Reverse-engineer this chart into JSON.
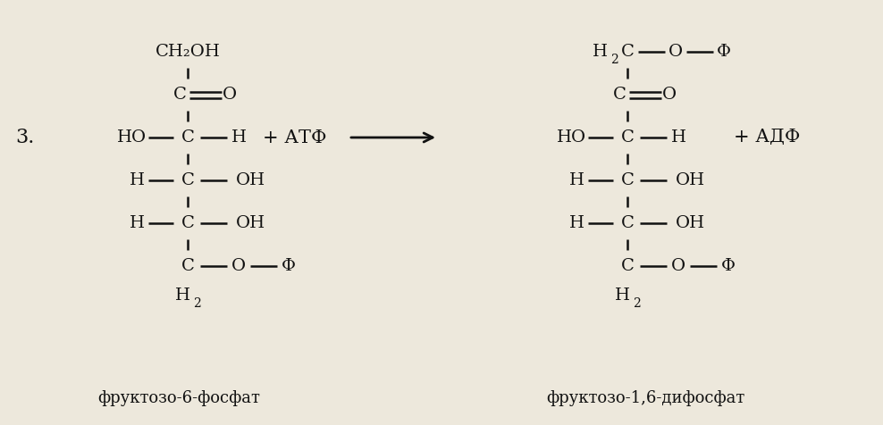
{
  "bg_color": "#ede8dc",
  "text_color": "#111111",
  "title": "3.",
  "label_left": "фруктозо-6-фосфат",
  "label_right": "фруктозо-1,6-дифосфат",
  "plus_atf": "+ АТФ",
  "plus_adf": "+ АДФ",
  "fs": 14,
  "fs_label": 13,
  "fs_title": 16
}
